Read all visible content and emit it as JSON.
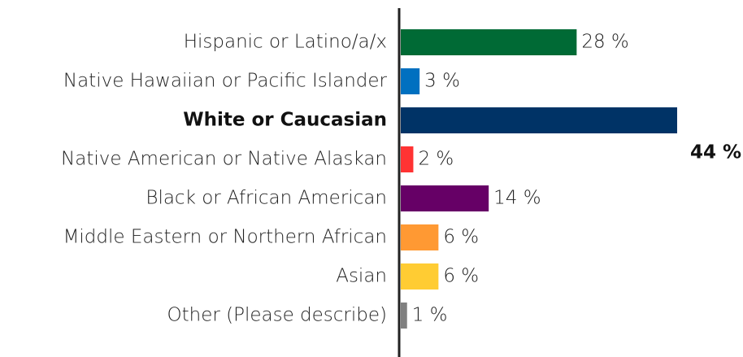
{
  "chart_data": {
    "type": "hbar",
    "categories": [
      "Hispanic or Latino/a/x",
      "Native Hawaiian or Pacific Islander",
      "White or Caucasian",
      "Native American or Native Alaskan",
      "Black or African American",
      "Middle Eastern or Northern African",
      "Asian",
      "Other  (Please describe)"
    ],
    "values": [
      28,
      3,
      44,
      2,
      14,
      6,
      6,
      1
    ],
    "value_labels": [
      "28 %",
      "3 %",
      "44 %",
      "2 %",
      "14 %",
      "6 %",
      "6 %",
      "1 %"
    ],
    "colors": [
      "#006a35",
      "#0070c0",
      "#003366",
      "#ff3333",
      "#660066",
      "#ff9933",
      "#ffcc33",
      "#808080"
    ],
    "xlim": [
      0,
      44
    ],
    "highlight": 2
  }
}
